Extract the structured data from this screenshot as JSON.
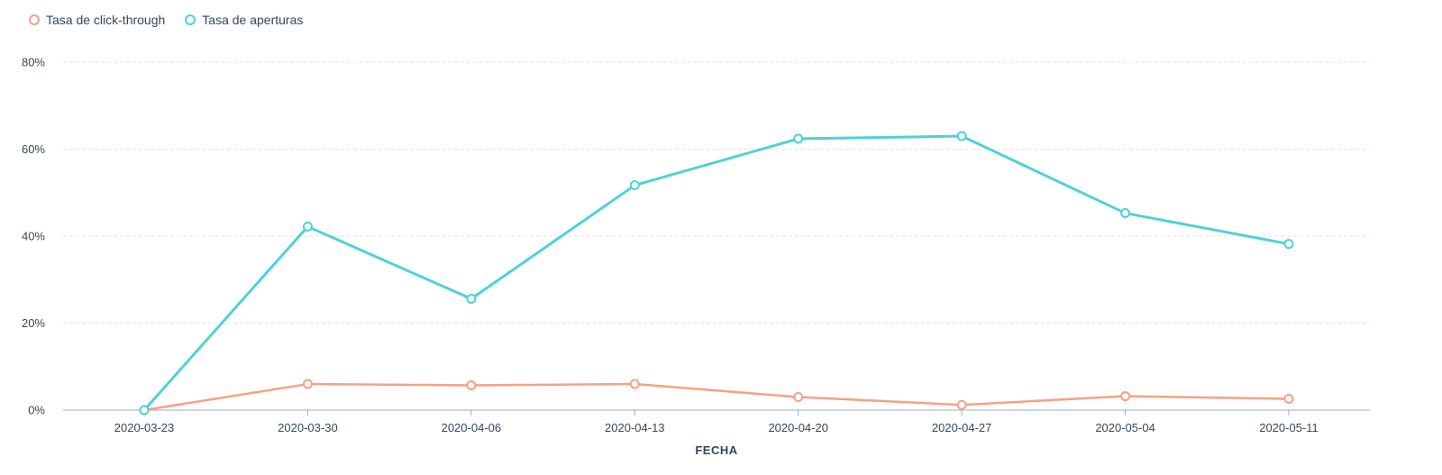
{
  "colors": {
    "click": "#f8a083",
    "open": "#4fd1d9",
    "grid": "#dfe3eb",
    "axis": "#99afc4",
    "text": "#33475b"
  },
  "legend": [
    {
      "label": "Tasa de click-through",
      "color": "#f8a083",
      "icon": "circle-outline-icon"
    },
    {
      "label": "Tasa de aperturas",
      "color": "#4fd1d9",
      "icon": "circle-outline-icon"
    }
  ],
  "chart_data": {
    "type": "line",
    "xlabel": "FECHA",
    "ylabel": "",
    "categories": [
      "2020-03-23",
      "2020-03-30",
      "2020-04-06",
      "2020-04-13",
      "2020-04-20",
      "2020-04-27",
      "2020-05-04",
      "2020-05-11"
    ],
    "ylim": [
      0,
      80
    ],
    "yticks": [
      0,
      20,
      40,
      60,
      80
    ],
    "ytick_labels": [
      "0%",
      "20%",
      "40%",
      "60%",
      "80%"
    ],
    "grid": true,
    "legend_position": "top-left",
    "series": [
      {
        "name": "Tasa de click-through",
        "color": "#f8a083",
        "values": [
          0,
          6,
          5.7,
          6,
          3,
          1.2,
          3.2,
          2.6
        ]
      },
      {
        "name": "Tasa de aperturas",
        "color": "#4fd1d9",
        "values": [
          0,
          42.2,
          25.6,
          51.7,
          62.4,
          63,
          45.3,
          38.2
        ]
      }
    ]
  }
}
